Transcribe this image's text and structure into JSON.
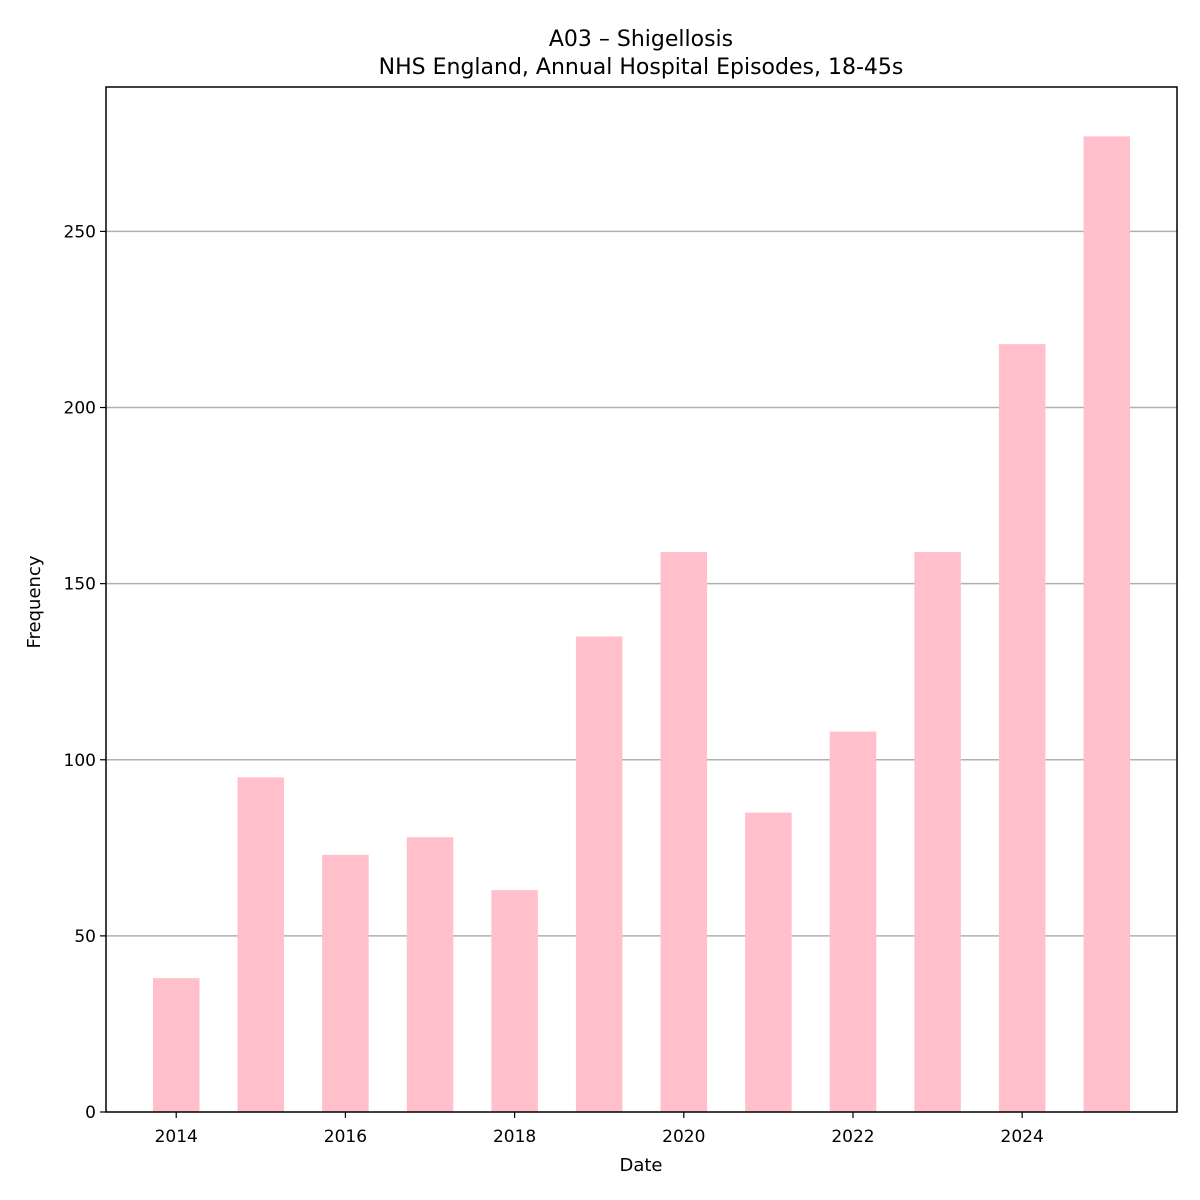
{
  "chart_data": {
    "type": "bar",
    "title": "A03 – Shigellosis",
    "subtitle": "NHS England, Annual Hospital Episodes, 18-45s",
    "xlabel": "Date",
    "ylabel": "Frequency",
    "x": [
      2014,
      2015,
      2016,
      2017,
      2018,
      2019,
      2020,
      2021,
      2022,
      2023,
      2024,
      2025
    ],
    "values": [
      38,
      95,
      73,
      78,
      63,
      135,
      159,
      85,
      108,
      159,
      218,
      277
    ],
    "xlim": [
      2013.17,
      2025.83
    ],
    "ylim": [
      0,
      291
    ],
    "x_ticks": [
      2014,
      2016,
      2018,
      2020,
      2022,
      2024
    ],
    "y_ticks": [
      0,
      50,
      100,
      150,
      200,
      250
    ],
    "bar_color": "#ffc0cb",
    "grid": "horizontal",
    "legend": "none"
  }
}
